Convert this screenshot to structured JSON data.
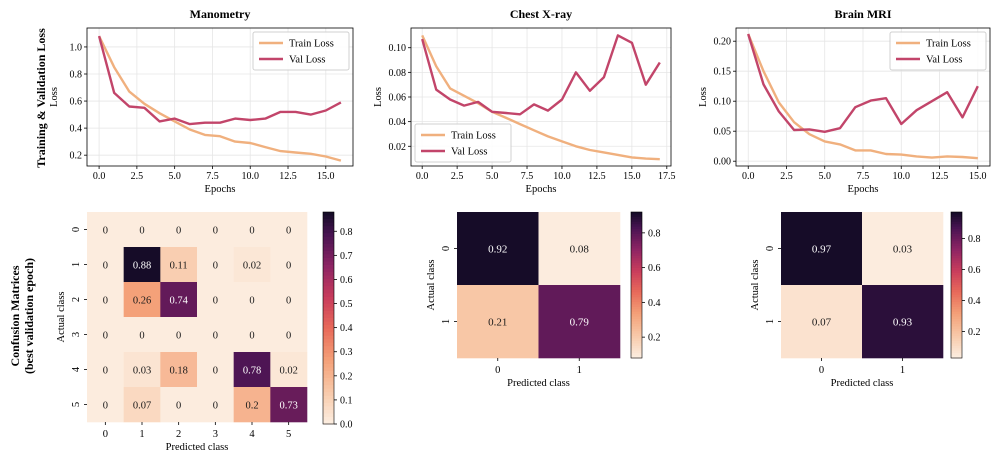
{
  "row_labels": {
    "top": "Training & Validation Loss",
    "bottom_line1": "Confusion Matrices",
    "bottom_line2": "(best validation epoch)"
  },
  "colors": {
    "train": "#f0b07e",
    "val": "#c2456a",
    "grid": "#e6e6e6"
  },
  "chart_data": [
    {
      "type": "line",
      "title": "Manometry",
      "xlabel": "Epochs",
      "ylabel": "Loss",
      "xlim": [
        -0.8,
        16.8
      ],
      "ylim": [
        0.12,
        1.14
      ],
      "xticks": [
        0,
        2.5,
        5,
        7.5,
        10,
        12.5,
        15
      ],
      "xtick_labels": [
        "0.0",
        "2.5",
        "5.0",
        "7.5",
        "10.0",
        "12.5",
        "15.0"
      ],
      "yticks": [
        0.2,
        0.4,
        0.6,
        0.8,
        1.0
      ],
      "ytick_labels": [
        "0.2",
        "0.4",
        "0.6",
        "0.8",
        "1.0"
      ],
      "grid": true,
      "legend_position": "top-right",
      "series": [
        {
          "name": "Train Loss",
          "x": [
            0,
            1,
            2,
            3,
            4,
            5,
            6,
            7,
            8,
            9,
            10,
            11,
            12,
            13,
            14,
            15,
            16
          ],
          "values": [
            1.08,
            0.85,
            0.67,
            0.58,
            0.51,
            0.45,
            0.39,
            0.35,
            0.34,
            0.3,
            0.29,
            0.26,
            0.23,
            0.22,
            0.21,
            0.19,
            0.16
          ]
        },
        {
          "name": "Val Loss",
          "x": [
            0,
            1,
            2,
            3,
            4,
            5,
            6,
            7,
            8,
            9,
            10,
            11,
            12,
            13,
            14,
            15,
            16
          ],
          "values": [
            1.08,
            0.66,
            0.56,
            0.55,
            0.45,
            0.47,
            0.43,
            0.44,
            0.44,
            0.47,
            0.46,
            0.47,
            0.52,
            0.52,
            0.5,
            0.53,
            0.59
          ]
        }
      ]
    },
    {
      "type": "line",
      "title": "Chest X-ray",
      "xlabel": "Epochs",
      "ylabel": "Loss",
      "xlim": [
        -0.8,
        17.8
      ],
      "ylim": [
        0.004,
        0.116
      ],
      "xticks": [
        0,
        2.5,
        5,
        7.5,
        10,
        12.5,
        15,
        17.5
      ],
      "xtick_labels": [
        "0.0",
        "2.5",
        "5.0",
        "7.5",
        "10.0",
        "12.5",
        "15.0",
        "17.5"
      ],
      "yticks": [
        0.02,
        0.04,
        0.06,
        0.08,
        0.1
      ],
      "ytick_labels": [
        "0.02",
        "0.04",
        "0.06",
        "0.08",
        "0.10"
      ],
      "grid": true,
      "legend_position": "bottom-left",
      "series": [
        {
          "name": "Train Loss",
          "x": [
            0,
            1,
            2,
            3,
            4,
            5,
            6,
            7,
            8,
            9,
            10,
            11,
            12,
            13,
            14,
            15,
            16,
            17
          ],
          "values": [
            0.11,
            0.085,
            0.067,
            0.061,
            0.055,
            0.048,
            0.043,
            0.038,
            0.033,
            0.028,
            0.024,
            0.02,
            0.017,
            0.015,
            0.013,
            0.011,
            0.01,
            0.0095
          ]
        },
        {
          "name": "Val Loss",
          "x": [
            0,
            1,
            2,
            3,
            4,
            5,
            6,
            7,
            8,
            9,
            10,
            11,
            12,
            13,
            14,
            15,
            16,
            17
          ],
          "values": [
            0.107,
            0.066,
            0.058,
            0.053,
            0.056,
            0.048,
            0.047,
            0.046,
            0.054,
            0.049,
            0.058,
            0.08,
            0.065,
            0.076,
            0.11,
            0.104,
            0.07,
            0.088
          ]
        }
      ]
    },
    {
      "type": "line",
      "title": "Brain MRI",
      "xlabel": "Epochs",
      "ylabel": "Loss",
      "xlim": [
        -0.8,
        15.8
      ],
      "ylim": [
        -0.008,
        0.222
      ],
      "xticks": [
        0,
        2.5,
        5,
        7.5,
        10,
        12.5,
        15
      ],
      "xtick_labels": [
        "0.0",
        "2.5",
        "5.0",
        "7.5",
        "10.0",
        "12.5",
        "15.0"
      ],
      "yticks": [
        0.0,
        0.05,
        0.1,
        0.15,
        0.2
      ],
      "ytick_labels": [
        "0.00",
        "0.05",
        "0.10",
        "0.15",
        "0.20"
      ],
      "grid": true,
      "legend_position": "top-right",
      "series": [
        {
          "name": "Train Loss",
          "x": [
            0,
            1,
            2,
            3,
            4,
            5,
            6,
            7,
            8,
            9,
            10,
            11,
            12,
            13,
            14,
            15
          ],
          "values": [
            0.212,
            0.15,
            0.098,
            0.065,
            0.045,
            0.033,
            0.028,
            0.018,
            0.018,
            0.012,
            0.011,
            0.008,
            0.006,
            0.008,
            0.007,
            0.005
          ]
        },
        {
          "name": "Val Loss",
          "x": [
            0,
            1,
            2,
            3,
            4,
            5,
            6,
            7,
            8,
            9,
            10,
            11,
            12,
            13,
            14,
            15
          ],
          "values": [
            0.212,
            0.128,
            0.083,
            0.052,
            0.053,
            0.049,
            0.055,
            0.09,
            0.101,
            0.105,
            0.062,
            0.085,
            0.1,
            0.115,
            0.073,
            0.125
          ]
        }
      ]
    },
    {
      "type": "heatmap",
      "title": "",
      "xlabel": "Predicted class",
      "ylabel": "Actual class",
      "labels": [
        "0",
        "1",
        "2",
        "3",
        "4",
        "5"
      ],
      "values": [
        [
          0,
          0,
          0,
          0,
          0,
          0
        ],
        [
          0,
          0.88,
          0.11,
          0,
          0.02,
          0
        ],
        [
          0,
          0.26,
          0.74,
          0,
          0,
          0
        ],
        [
          0,
          0,
          0,
          0,
          0,
          0
        ],
        [
          0,
          0.03,
          0.18,
          0,
          0.78,
          0.02
        ],
        [
          0,
          0.07,
          0,
          0,
          0.2,
          0.73
        ]
      ],
      "colorbar_ticks": [
        0.0,
        0.1,
        0.2,
        0.3,
        0.4,
        0.5,
        0.6,
        0.7,
        0.8
      ],
      "colorbar_tick_labels": [
        "0.0",
        "0.1",
        "0.2",
        "0.3",
        "0.4",
        "0.5",
        "0.6",
        "0.7",
        "0.8"
      ],
      "vmin": 0,
      "vmax": 0.88
    },
    {
      "type": "heatmap",
      "title": "",
      "xlabel": "Predicted class",
      "ylabel": "Actual class",
      "labels": [
        "0",
        "1"
      ],
      "values": [
        [
          0.92,
          0.08
        ],
        [
          0.21,
          0.79
        ]
      ],
      "colorbar_ticks": [
        0.2,
        0.4,
        0.6,
        0.8
      ],
      "colorbar_tick_labels": [
        "0.2",
        "0.4",
        "0.6",
        "0.8"
      ],
      "vmin": 0.08,
      "vmax": 0.92
    },
    {
      "type": "heatmap",
      "title": "",
      "xlabel": "Predicted class",
      "ylabel": "Actual class",
      "labels": [
        "0",
        "1"
      ],
      "values": [
        [
          0.97,
          0.03
        ],
        [
          0.07,
          0.93
        ]
      ],
      "colorbar_ticks": [
        0.2,
        0.4,
        0.6,
        0.8
      ],
      "colorbar_tick_labels": [
        "0.2",
        "0.4",
        "0.6",
        "0.8"
      ],
      "vmin": 0.03,
      "vmax": 0.97
    }
  ]
}
